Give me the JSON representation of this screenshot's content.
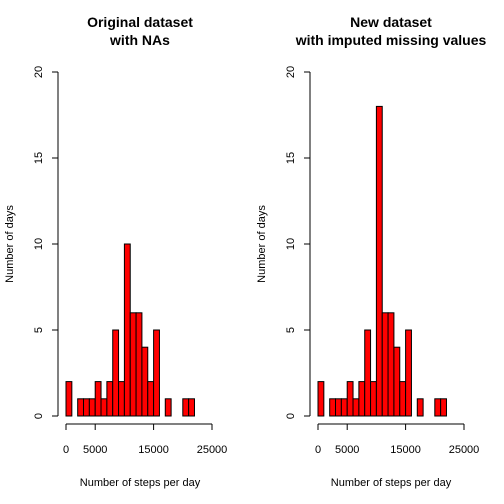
{
  "chart_data": [
    {
      "type": "bar",
      "title_line1": "Original dataset",
      "title_line2": "with NAs",
      "xlabel": "Number of steps per day",
      "ylabel": "Number of days",
      "bin_width": 1000,
      "bin_start": 0,
      "counts": [
        2,
        0,
        1,
        1,
        1,
        2,
        1,
        2,
        5,
        2,
        10,
        6,
        6,
        4,
        2,
        5,
        0,
        1,
        0,
        0,
        1,
        1
      ],
      "xlim": [
        0,
        25000
      ],
      "ylim": [
        0,
        20
      ],
      "xticks": [
        0,
        5000,
        15000,
        25000
      ],
      "yticks": [
        0,
        5,
        10,
        15,
        20
      ],
      "bar_color": "#ff0000"
    },
    {
      "type": "bar",
      "title_line1": "New dataset",
      "title_line2": "with imputed missing values",
      "xlabel": "Number of steps per day",
      "ylabel": "Number of days",
      "bin_width": 1000,
      "bin_start": 0,
      "counts": [
        2,
        0,
        1,
        1,
        1,
        2,
        1,
        2,
        5,
        2,
        18,
        6,
        6,
        4,
        2,
        5,
        0,
        1,
        0,
        0,
        1,
        1
      ],
      "xlim": [
        0,
        25000
      ],
      "ylim": [
        0,
        20
      ],
      "xticks": [
        0,
        5000,
        15000,
        25000
      ],
      "yticks": [
        0,
        5,
        10,
        15,
        20
      ],
      "bar_color": "#ff0000"
    }
  ]
}
